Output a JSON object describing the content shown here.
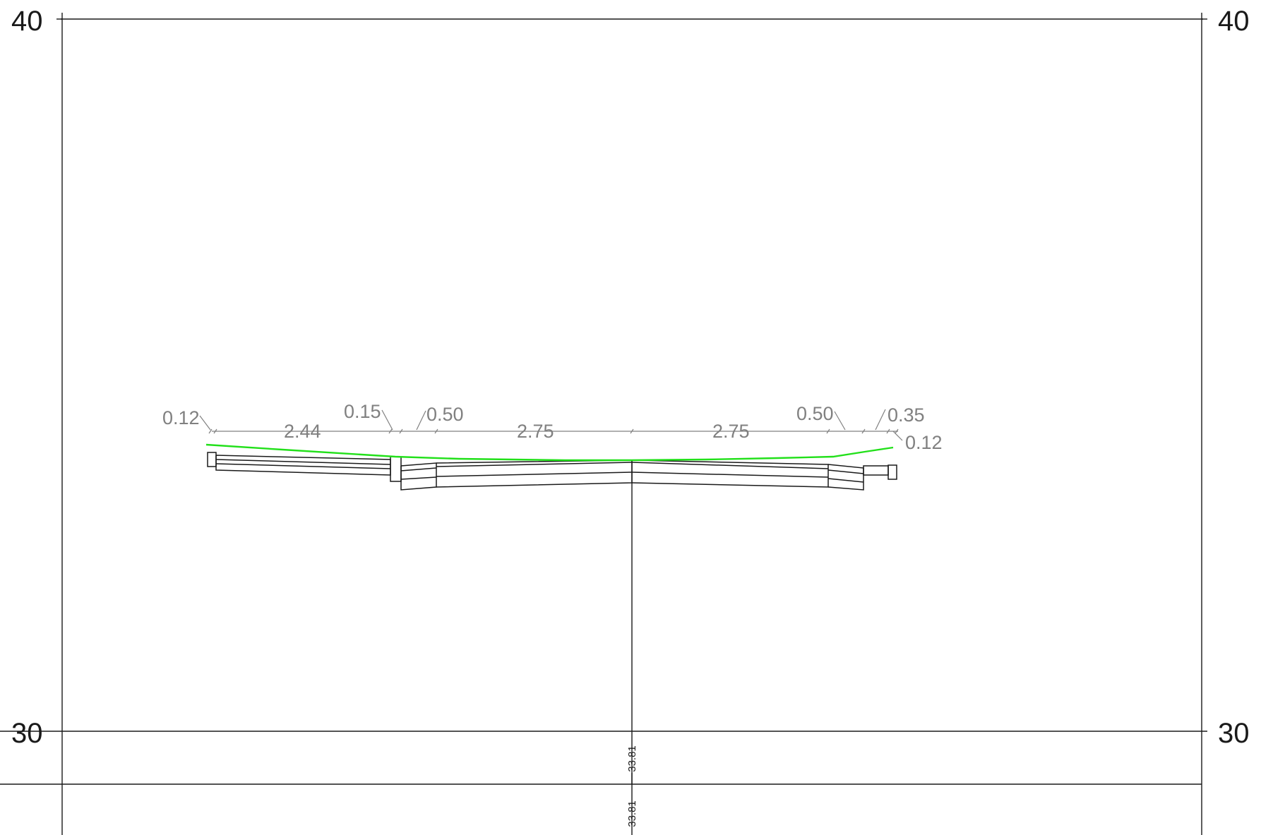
{
  "elevation_scale": {
    "top_label": "40",
    "bottom_label": "30"
  },
  "dimensions": {
    "left_edge": "0.12",
    "left_sidewalk": "2.44",
    "left_curb": "0.15",
    "left_gutter": "0.50",
    "left_lane": "2.75",
    "right_lane": "2.75",
    "right_gutter": "0.50",
    "right_curb": "0.35",
    "right_edge": "0.12"
  },
  "bands": {
    "design_elevation": "33.81",
    "ground_elevation": "33.81"
  },
  "colors": {
    "structure": "#1a1a1a",
    "dimension": "#808080",
    "ground_line": "#22e01a"
  }
}
